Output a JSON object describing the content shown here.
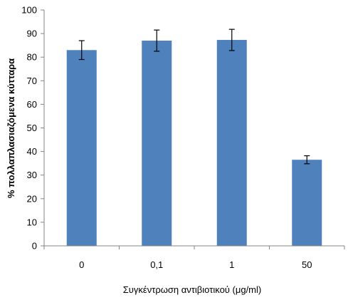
{
  "chart_data": {
    "type": "bar",
    "categories": [
      "0",
      "0,1",
      "1",
      "50"
    ],
    "series": [
      {
        "values": [
          83,
          87,
          87.3,
          36.5
        ],
        "errors": [
          4,
          4.5,
          4.5,
          1.7
        ],
        "color": "#4F81BD"
      }
    ],
    "title": "",
    "xlabel": "Συγκέντρωση αντιβιοτικού (μg/ml)",
    "ylabel": "% πολλαπλασιαζόμενα κύτταρα",
    "ylim": [
      0,
      100
    ],
    "yticks": [
      "0",
      "10",
      "20",
      "30",
      "40",
      "50",
      "60",
      "70",
      "80",
      "90",
      "100"
    ],
    "grid": false,
    "legend": "none"
  }
}
